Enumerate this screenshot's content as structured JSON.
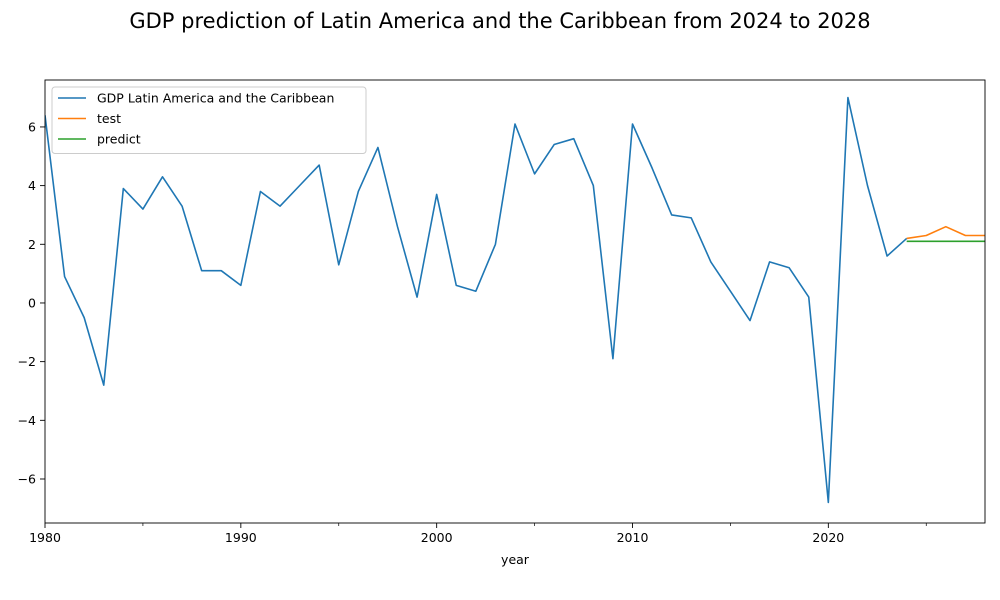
{
  "chart_data": {
    "type": "line",
    "title": "GDP prediction of Latin America and the Caribbean from 2024 to 2028",
    "xlabel": "year",
    "ylabel": "",
    "xlim": [
      1980,
      2028
    ],
    "ylim": [
      -7.5,
      7.6
    ],
    "x_ticks": [
      1980,
      1990,
      2000,
      2010,
      2020
    ],
    "x_tick_labels": [
      "1980",
      "1990",
      "2000",
      "2010",
      "2020"
    ],
    "y_ticks": [
      -6,
      -4,
      -2,
      0,
      2,
      4,
      6
    ],
    "y_tick_labels": [
      "−6",
      "−4",
      "−2",
      "0",
      "2",
      "4",
      "6"
    ],
    "grid": false,
    "legend_position": "top-left",
    "series": [
      {
        "name": "GDP Latin America and the Caribbean",
        "color": "#1f77b4",
        "x": [
          1980,
          1981,
          1982,
          1983,
          1984,
          1985,
          1986,
          1987,
          1988,
          1989,
          1990,
          1991,
          1992,
          1993,
          1994,
          1995,
          1996,
          1997,
          1998,
          1999,
          2000,
          2001,
          2002,
          2003,
          2004,
          2005,
          2006,
          2007,
          2008,
          2009,
          2010,
          2011,
          2012,
          2013,
          2014,
          2015,
          2016,
          2017,
          2018,
          2019,
          2020,
          2021,
          2022,
          2023,
          2024
        ],
        "y": [
          6.4,
          0.9,
          -0.5,
          -2.8,
          3.9,
          3.2,
          4.3,
          3.3,
          1.1,
          1.1,
          0.6,
          3.8,
          3.3,
          4.0,
          4.7,
          1.3,
          3.8,
          5.3,
          2.6,
          0.2,
          3.7,
          0.6,
          0.4,
          2.0,
          6.1,
          4.4,
          5.4,
          5.6,
          4.0,
          -1.9,
          6.1,
          4.6,
          3.0,
          2.9,
          1.4,
          0.4,
          -0.6,
          1.4,
          1.2,
          0.2,
          -6.8,
          7.0,
          4.0,
          1.6,
          2.2
        ]
      },
      {
        "name": "test",
        "color": "#ff7f0e",
        "x": [
          2024,
          2025,
          2026,
          2027,
          2028
        ],
        "y": [
          2.2,
          2.3,
          2.6,
          2.3,
          2.3
        ]
      },
      {
        "name": "predict",
        "color": "#2ca02c",
        "x": [
          2024,
          2025,
          2026,
          2027,
          2028
        ],
        "y": [
          2.1,
          2.1,
          2.1,
          2.1,
          2.1
        ]
      }
    ]
  }
}
